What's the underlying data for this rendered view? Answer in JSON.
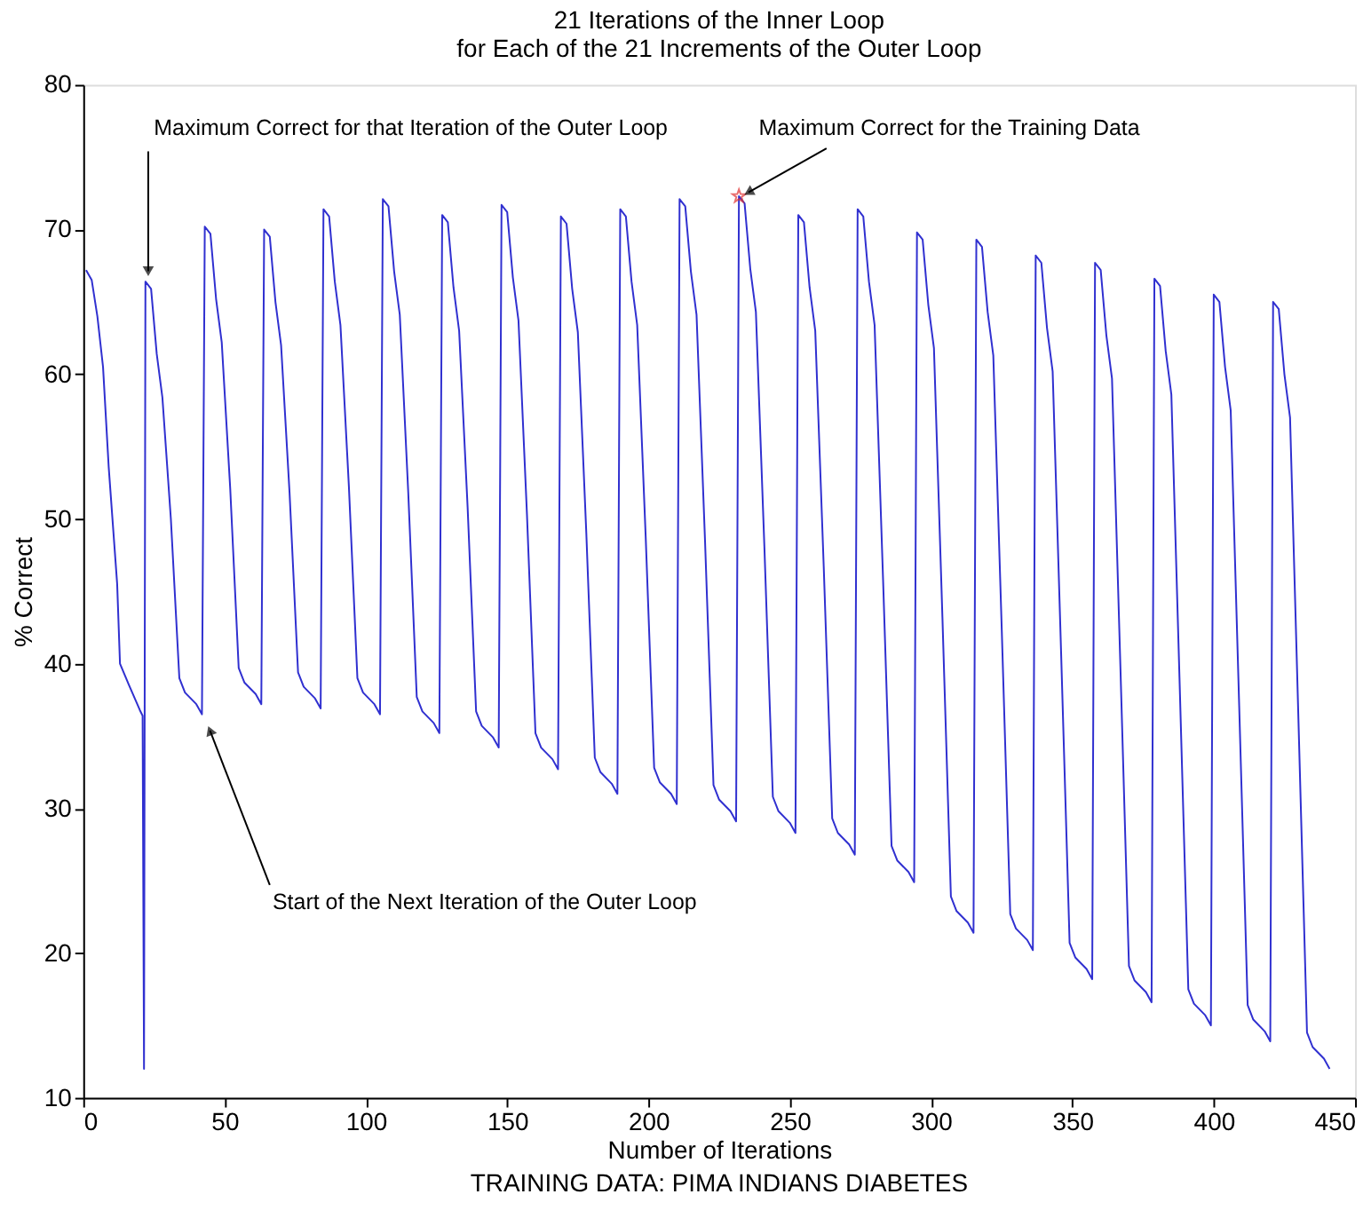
{
  "chart_data": {
    "type": "line",
    "title": "21 Iterations of the Inner Loop",
    "subtitle": "for Each of the 21 Increments of the Outer Loop",
    "xlabel": "Number of Iterations",
    "ylabel": "% Correct",
    "xlim": [
      0,
      450
    ],
    "xticks": [
      0,
      50,
      100,
      150,
      200,
      250,
      300,
      350,
      400,
      450
    ],
    "ylim": [
      10,
      80
    ],
    "yticks": [
      10,
      20,
      30,
      40,
      50,
      60,
      70,
      80
    ],
    "grid": false,
    "series": [
      {
        "color": "#3030d0",
        "x": [
          1,
          3,
          5,
          7,
          9,
          12,
          13,
          16,
          20,
          21,
          21.5,
          22,
          24,
          26,
          28,
          31,
          34,
          36,
          40,
          42,
          43,
          45,
          47,
          49,
          52,
          55,
          57,
          61,
          63,
          64,
          66,
          68,
          70,
          73,
          76,
          78,
          82,
          84,
          85,
          87,
          89,
          91,
          94,
          97,
          99,
          103,
          105,
          106,
          108,
          110,
          112,
          115,
          118,
          120,
          124,
          126,
          127,
          129,
          131,
          133,
          136,
          139,
          141,
          145,
          147,
          148,
          150,
          152,
          154,
          157,
          160,
          162,
          166,
          168,
          169,
          171,
          173,
          175,
          178,
          181,
          183,
          187,
          189,
          190,
          192,
          194,
          196,
          199,
          202,
          204,
          208,
          210,
          211,
          213,
          215,
          217,
          220,
          223,
          225,
          229,
          231,
          232,
          234,
          236,
          238,
          241,
          244,
          246,
          250,
          252,
          253,
          255,
          257,
          259,
          262,
          265,
          267,
          271,
          273,
          274,
          276,
          278,
          280,
          283,
          286,
          288,
          292,
          294,
          295,
          297,
          299,
          301,
          304,
          307,
          309,
          313,
          315,
          316,
          318,
          320,
          322,
          325,
          328,
          330,
          334,
          336,
          337,
          339,
          341,
          343,
          346,
          349,
          351,
          355,
          357,
          358,
          360,
          362,
          364,
          367,
          370,
          372,
          376,
          378,
          379,
          381,
          383,
          385,
          388,
          391,
          393,
          397,
          399,
          400,
          402,
          404,
          406,
          409,
          412,
          414,
          418,
          420,
          421,
          423,
          425,
          427,
          430,
          433,
          435,
          439,
          441
        ],
        "values": [
          67.2,
          66.5,
          64,
          60.5,
          53.6,
          45.5,
          40,
          38.6,
          36.8,
          36.4,
          12,
          66.4,
          65.9,
          61.4,
          58.4,
          50.0,
          39.0,
          38.0,
          37.2,
          36.5,
          70.2,
          69.7,
          65.2,
          62.2,
          52.1,
          39.7,
          38.7,
          37.9,
          37.2,
          70.0,
          69.5,
          65.0,
          62.0,
          51.8,
          39.4,
          38.4,
          37.6,
          36.9,
          71.4,
          70.9,
          66.4,
          63.4,
          52.2,
          39.0,
          38.0,
          37.2,
          36.5,
          72.1,
          71.6,
          67.1,
          64.1,
          51.8,
          37.7,
          36.7,
          35.9,
          35.2,
          71.0,
          70.5,
          66.0,
          63.0,
          50.8,
          36.7,
          35.7,
          34.9,
          34.2,
          71.7,
          71.2,
          66.7,
          63.7,
          50.3,
          35.2,
          34.2,
          33.4,
          32.7,
          70.9,
          70.4,
          65.9,
          62.9,
          49.0,
          33.5,
          32.5,
          31.7,
          31.0,
          71.4,
          70.9,
          66.4,
          63.4,
          48.8,
          32.8,
          31.8,
          31.0,
          30.3,
          72.1,
          71.6,
          67.1,
          64.1,
          48.5,
          31.6,
          30.6,
          29.8,
          29.1,
          72.3,
          71.8,
          67.3,
          64.3,
          48.1,
          30.8,
          29.8,
          29.0,
          28.3,
          71.0,
          70.5,
          66.0,
          63.0,
          46.7,
          29.3,
          28.3,
          27.5,
          26.8,
          71.4,
          70.9,
          66.4,
          63.4,
          45.8,
          27.4,
          26.4,
          25.6,
          24.9,
          69.8,
          69.3,
          64.8,
          61.8,
          43.2,
          23.9,
          22.9,
          22.1,
          21.4,
          69.3,
          68.8,
          64.3,
          61.3,
          42.3,
          22.7,
          21.7,
          20.9,
          20.2,
          68.2,
          67.7,
          63.2,
          60.2,
          40.7,
          20.7,
          19.7,
          18.9,
          18.2,
          67.7,
          67.2,
          62.7,
          59.7,
          39.6,
          19.1,
          18.1,
          17.3,
          16.6,
          66.6,
          66.1,
          61.6,
          58.6,
          38.2,
          17.5,
          16.5,
          15.7,
          15.0,
          65.5,
          65.0,
          60.5,
          57.5,
          37.1,
          16.4,
          15.4,
          14.6,
          13.9,
          65.0,
          64.5,
          60.0,
          57.0,
          35.9,
          14.5,
          13.5,
          12.7,
          12.0
        ]
      },
      {
        "type": "scatter",
        "color": "#e03030",
        "marker": "star",
        "x": [
          232
        ],
        "values": [
          72.3
        ]
      }
    ],
    "annotations": [
      {
        "text": "Maximum Correct for that Iteration of the Outer Loop",
        "x": 23,
        "y": 66.4
      },
      {
        "text": "Maximum Correct for the Training Data",
        "x": 233,
        "y": 72.3
      },
      {
        "text": "Start of the Next Iteration of the Outer Loop",
        "x": 43,
        "y": 36.3
      },
      "TRAINING DATA: PIMA INDIANS DIABETES"
    ]
  }
}
